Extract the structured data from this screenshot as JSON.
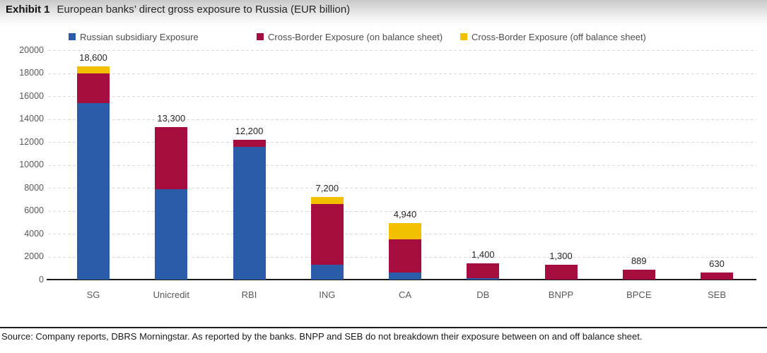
{
  "header": {
    "exhibit_label": "Exhibit 1",
    "title": "European banks’ direct gross exposure to Russia (EUR billion)"
  },
  "footer": {
    "source": "Source: Company reports, DBRS Morningstar. As reported by the banks. BNPP and SEB do not breakdown their exposure between on and off balance sheet."
  },
  "colors": {
    "subsidiary_blue": "#2A5CAA",
    "crossborder_on_red": "#A60D3F",
    "crossborder_off_yellow": "#F3C000",
    "axis": "#1a1a1a",
    "grid": "#d9d9d9",
    "tick_text": "#595959"
  },
  "chart_data": {
    "type": "bar",
    "stacked": true,
    "title": "European banks’ direct gross exposure to Russia (EUR billion)",
    "legend_position": "top",
    "grid": "dashed horizontal",
    "categories": [
      "SG",
      "Unicredit",
      "RBI",
      "ING",
      "CA",
      "DB",
      "BNPP",
      "BPCE",
      "SEB"
    ],
    "series": [
      {
        "name": "Russian subsidiary Exposure",
        "color": "#2A5CAA",
        "values": [
          15400,
          7900,
          11600,
          1300,
          600,
          150,
          0,
          0,
          0
        ]
      },
      {
        "name": "Cross-Border Exposure (on balance sheet)",
        "color": "#A60D3F",
        "values": [
          2600,
          5400,
          600,
          5300,
          2900,
          1250,
          1300,
          889,
          630
        ]
      },
      {
        "name": "Cross-Border Exposure (off balance sheet)",
        "color": "#F3C000",
        "values": [
          600,
          0,
          0,
          600,
          1440,
          0,
          0,
          0,
          0
        ]
      }
    ],
    "totals": [
      18600,
      13300,
      12200,
      7200,
      4940,
      1400,
      1300,
      889,
      630
    ],
    "total_labels": [
      "18,600",
      "13,300",
      "12,200",
      "7,200",
      "4,940",
      "1,400",
      "1,300",
      "889",
      "630"
    ],
    "ylim": [
      0,
      20000
    ],
    "yticks": [
      0,
      2000,
      4000,
      6000,
      8000,
      10000,
      12000,
      14000,
      16000,
      18000,
      20000
    ],
    "xlabel": "",
    "ylabel": ""
  }
}
